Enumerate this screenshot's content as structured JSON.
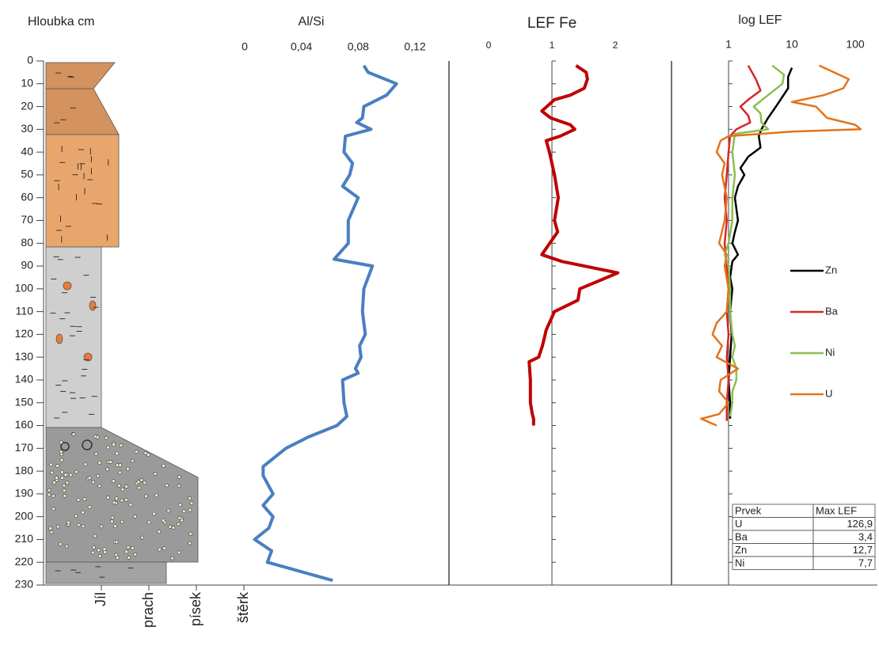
{
  "chart_data": [
    {
      "type": "lithology",
      "title": "Hloubka cm",
      "ylim": [
        0,
        230
      ],
      "yticks": [
        0,
        10,
        20,
        30,
        40,
        50,
        60,
        70,
        80,
        90,
        100,
        110,
        120,
        130,
        140,
        150,
        160,
        170,
        180,
        190,
        200,
        210,
        220,
        230
      ],
      "categories": [
        "Jíl",
        "prach",
        "písek",
        "štěrk"
      ]
    },
    {
      "type": "line",
      "title": "Al/Si",
      "xlim": [
        0,
        0.144
      ],
      "xticks": [
        0,
        {
          "value": 0.04,
          "label": "0,04"
        },
        {
          "value": 0.08,
          "label": "0,08"
        },
        {
          "value": 0.12,
          "label": "0,12"
        }
      ],
      "series": [
        {
          "color": "#4a7fc1",
          "depth": [
            2,
            5,
            10,
            15,
            20,
            25,
            27,
            30,
            33,
            40,
            45,
            50,
            55,
            60,
            70,
            80,
            87,
            90,
            100,
            110,
            120,
            125,
            130,
            135,
            137,
            140,
            150,
            156,
            160,
            165,
            170,
            178,
            182,
            190,
            195,
            200,
            205,
            210,
            215,
            220,
            228
          ],
          "values": [
            0.084,
            0.087,
            0.107,
            0.1,
            0.084,
            0.083,
            0.079,
            0.089,
            0.071,
            0.07,
            0.076,
            0.074,
            0.069,
            0.08,
            0.073,
            0.073,
            0.063,
            0.09,
            0.084,
            0.083,
            0.085,
            0.081,
            0.082,
            0.078,
            0.08,
            0.069,
            0.07,
            0.072,
            0.065,
            0.045,
            0.029,
            0.013,
            0.013,
            0.02,
            0.013,
            0.02,
            0.017,
            0.007,
            0.019,
            0.016,
            0.062
          ]
        }
      ]
    },
    {
      "type": "line",
      "title": "LEF Fe",
      "xlim": [
        -0.625,
        2.8875
      ],
      "xticks": [
        0,
        1,
        2
      ],
      "series": [
        {
          "color": "#c00000",
          "depth": [
            2,
            5,
            8,
            12,
            15,
            17,
            22,
            25,
            28,
            30,
            33,
            35,
            40,
            50,
            60,
            70,
            75,
            85,
            88,
            93,
            100,
            105,
            110,
            118,
            125,
            130,
            132,
            140,
            150,
            155,
            157,
            160
          ],
          "values": [
            1.38,
            1.54,
            1.56,
            1.51,
            1.29,
            1.04,
            0.84,
            0.98,
            1.29,
            1.36,
            1.13,
            0.91,
            0.96,
            1.04,
            1.1,
            1.04,
            1.09,
            0.84,
            1.16,
            2.04,
            1.44,
            1.41,
            1.04,
            0.91,
            0.85,
            0.79,
            0.64,
            0.66,
            0.66,
            0.69,
            0.71,
            0.71
          ]
        }
      ]
    },
    {
      "type": "line",
      "title": "log LEF",
      "log_x": true,
      "xlim": [
        0.126,
        237
      ],
      "xticks": [
        1,
        10,
        100
      ],
      "series": [
        {
          "name": "Zn",
          "color": "#000000",
          "depth": [
            3,
            7,
            12,
            20,
            25,
            30,
            33,
            38,
            42,
            47,
            50,
            55,
            60,
            70,
            75,
            80,
            85,
            88,
            95,
            100,
            110,
            120,
            130,
            140,
            150,
            157
          ],
          "values": [
            10,
            8.7,
            8.7,
            5.6,
            4.2,
            3.3,
            3.0,
            3.2,
            2.05,
            1.54,
            1.78,
            1.41,
            1.26,
            1.41,
            1.26,
            1.15,
            1.41,
            1.15,
            1.06,
            1.15,
            1.06,
            1.12,
            1.06,
            1.0,
            1.06,
            1.06
          ]
        },
        {
          "name": "Ba",
          "color": "#d6262b",
          "depth": [
            2,
            8,
            13,
            17,
            20,
            24,
            27,
            30,
            33,
            40,
            50,
            60,
            70,
            80,
            90,
            100,
            110,
            120,
            130,
            140,
            150,
            158
          ],
          "values": [
            2.05,
            2.7,
            3.2,
            2.05,
            1.54,
            2.05,
            2.2,
            1.33,
            1.06,
            1.0,
            0.94,
            0.87,
            0.94,
            0.87,
            0.94,
            1.0,
            0.94,
            1.0,
            0.94,
            1.0,
            0.94,
            0.94
          ]
        },
        {
          "name": "Ni",
          "color": "#8cbf4e",
          "depth": [
            2,
            6,
            10,
            15,
            20,
            23,
            27,
            30,
            32,
            40,
            50,
            60,
            70,
            80,
            85,
            90,
            100,
            110,
            120,
            125,
            130,
            135,
            140,
            145,
            150,
            156
          ],
          "values": [
            4.9,
            7.5,
            7.1,
            4.2,
            2.5,
            3.2,
            3.3,
            4.2,
            1.26,
            1.15,
            1.26,
            1.15,
            1.15,
            1.0,
            0.87,
            1.0,
            1.06,
            1.06,
            1.15,
            1.26,
            1.15,
            1.33,
            1.33,
            1.15,
            1.15,
            1.06
          ]
        },
        {
          "name": "U",
          "color": "#e3731a",
          "depth": [
            2,
            8,
            12,
            15,
            18,
            20,
            25,
            28,
            30,
            31,
            33,
            35,
            40,
            45,
            50,
            60,
            70,
            80,
            85,
            90,
            100,
            110,
            115,
            120,
            125,
            130,
            135,
            140,
            145,
            150,
            155,
            157,
            160
          ],
          "values": [
            27,
            79,
            65,
            32,
            10,
            24,
            36,
            100,
            122,
            10,
            1.0,
            0.75,
            0.65,
            0.87,
            0.79,
            0.94,
            0.87,
            0.71,
            0.94,
            0.87,
            1.0,
            0.94,
            0.65,
            0.56,
            0.79,
            0.65,
            1.41,
            0.75,
            0.71,
            1.0,
            0.71,
            0.37,
            0.65
          ]
        }
      ]
    }
  ],
  "table": {
    "header": [
      "Prvek",
      "Max LEF"
    ],
    "rows": [
      [
        "U",
        "126,9"
      ],
      [
        "Ba",
        "3,4"
      ],
      [
        "Zn",
        "12,7"
      ],
      [
        "Ni",
        "7,7"
      ]
    ]
  }
}
